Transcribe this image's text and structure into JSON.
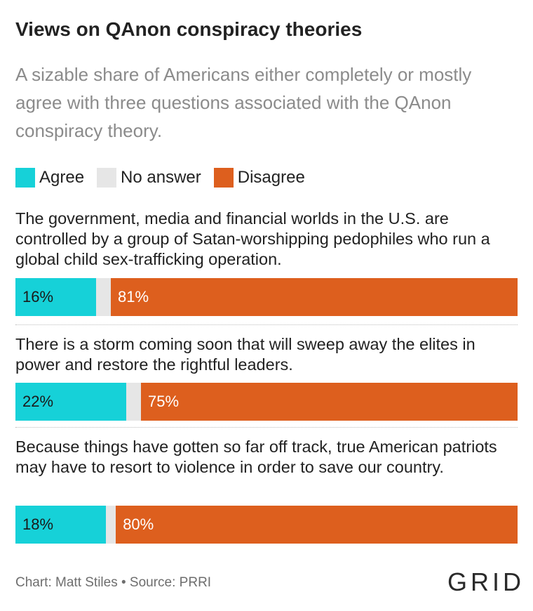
{
  "title": "Views on QAnon conspiracy theories",
  "subtitle": "A sizable share of Americans either completely or mostly agree with three questions associated with the QAnon conspiracy theory.",
  "legend": [
    {
      "label": "Agree",
      "color": "#16d1d8"
    },
    {
      "label": "No answer",
      "color": "#e6e6e6"
    },
    {
      "label": "Disagree",
      "color": "#dd5f1e"
    }
  ],
  "chart_data": {
    "type": "bar",
    "orientation": "horizontal-stacked",
    "categories": [
      "The government, media and financial worlds in the U.S. are controlled by a group of Satan-worshipping pedophiles who run a global child sex-trafficking operation.",
      "There is a storm coming soon that will sweep away the elites in power and restore the rightful leaders.",
      "Because things have gotten so far off track, true American patriots may have to resort to violence in order to save our country."
    ],
    "series": [
      {
        "name": "Agree",
        "values": [
          16,
          22,
          18
        ],
        "labels": [
          "16%",
          "22%",
          "18%"
        ],
        "color": "#16d1d8"
      },
      {
        "name": "No answer",
        "values": [
          3,
          3,
          2
        ],
        "color": "#e6e6e6"
      },
      {
        "name": "Disagree",
        "values": [
          81,
          75,
          80
        ],
        "labels": [
          "81%",
          "75%",
          "80%"
        ],
        "color": "#dd5f1e"
      }
    ],
    "xlim": [
      0,
      100
    ],
    "grid": false,
    "legend_position": "top-left"
  },
  "footer": "Chart: Matt Stiles • Source: PRRI",
  "logo": "GRID"
}
